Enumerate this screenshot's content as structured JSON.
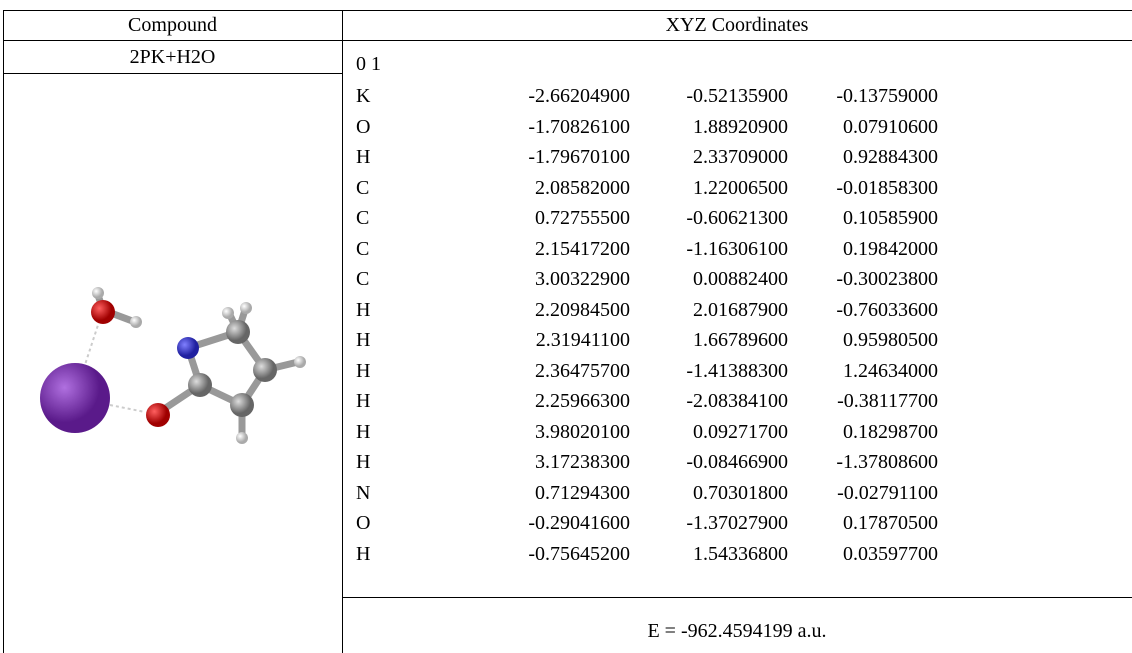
{
  "table": {
    "headers": [
      "Compound",
      "XYZ Coordinates"
    ],
    "compound": "2PK+H2O",
    "charge_multiplicity": "0 1",
    "atoms": [
      [
        "K",
        "-2.66204900",
        "-0.52135900",
        "-0.13759000"
      ],
      [
        "O",
        "-1.70826100",
        "1.88920900",
        "0.07910600"
      ],
      [
        "H",
        "-1.79670100",
        "2.33709000",
        "0.92884300"
      ],
      [
        "C",
        "2.08582000",
        "1.22006500",
        "-0.01858300"
      ],
      [
        "C",
        "0.72755500",
        "-0.60621300",
        "0.10585900"
      ],
      [
        "C",
        "2.15417200",
        "-1.16306100",
        "0.19842000"
      ],
      [
        "C",
        "3.00322900",
        "0.00882400",
        "-0.30023800"
      ],
      [
        "H",
        "2.20984500",
        "2.01687900",
        "-0.76033600"
      ],
      [
        "H",
        "2.31941100",
        "1.66789600",
        "0.95980500"
      ],
      [
        "H",
        "2.36475700",
        "-1.41388300",
        "1.24634000"
      ],
      [
        "H",
        "2.25966300",
        "-2.08384100",
        "-0.38117700"
      ],
      [
        "H",
        "3.98020100",
        "0.09271700",
        "0.18298700"
      ],
      [
        "H",
        "3.17238300",
        "-0.08466900",
        "-1.37808600"
      ],
      [
        "N",
        "0.71294300",
        "0.70301800",
        "-0.02791100"
      ],
      [
        "O",
        "-0.29041600",
        "-1.37027900",
        "0.17870500"
      ],
      [
        "H",
        "-0.75645200",
        "1.54336800",
        "0.03597700"
      ]
    ],
    "energy": "E = -962.4594199 a.u."
  }
}
